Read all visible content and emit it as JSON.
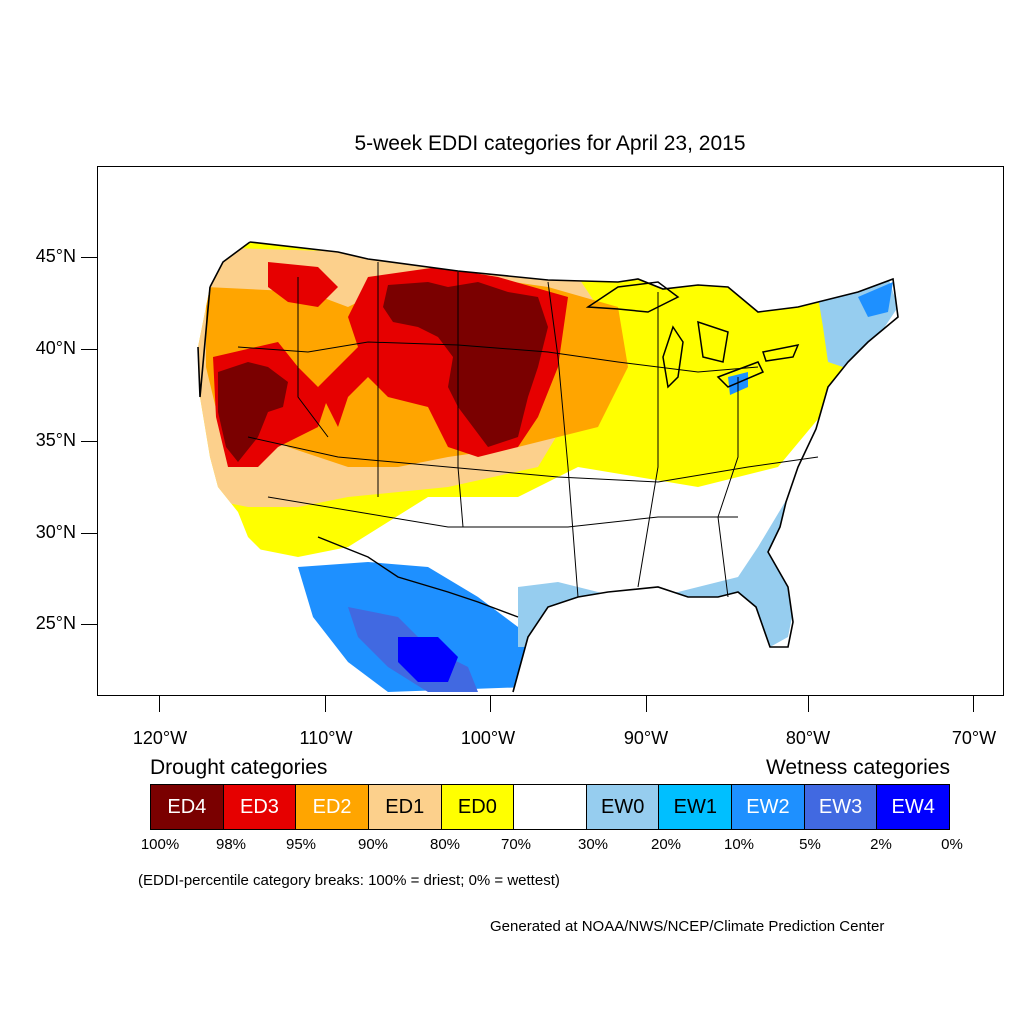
{
  "title": "5-week EDDI categories for April 23, 2015",
  "lat_labels": [
    "45°N",
    "40°N",
    "35°N",
    "30°N",
    "25°N"
  ],
  "lon_labels": [
    "120°W",
    "110°W",
    "100°W",
    "90°W",
    "80°W",
    "70°W"
  ],
  "legend": {
    "drought_heading": "Drought categories",
    "wetness_heading": "Wetness categories",
    "categories": [
      {
        "label": "ED4",
        "color": "#7a0000",
        "text_color": "#ffffff"
      },
      {
        "label": "ED3",
        "color": "#e60000",
        "text_color": "#ffffff"
      },
      {
        "label": "ED2",
        "color": "#ffa500",
        "text_color": "#ffffff"
      },
      {
        "label": "ED1",
        "color": "#fcd08c",
        "text_color": "#000000"
      },
      {
        "label": "ED0",
        "color": "#ffff00",
        "text_color": "#000000"
      },
      {
        "label": "",
        "color": "#ffffff",
        "text_color": "#000000"
      },
      {
        "label": "EW0",
        "color": "#96cdef",
        "text_color": "#000000"
      },
      {
        "label": "EW1",
        "color": "#00bfff",
        "text_color": "#000000"
      },
      {
        "label": "EW2",
        "color": "#1e90ff",
        "text_color": "#ffffff"
      },
      {
        "label": "EW3",
        "color": "#4169e1",
        "text_color": "#ffffff"
      },
      {
        "label": "EW4",
        "color": "#0000ff",
        "text_color": "#ffffff"
      }
    ],
    "breaks": [
      "100%",
      "98%",
      "95%",
      "90%",
      "80%",
      "70%",
      "30%",
      "20%",
      "10%",
      "5%",
      "2%",
      "0%"
    ]
  },
  "note": "(EDDI-percentile category breaks: 100% = driest; 0% = wettest)",
  "credit": "Generated at NOAA/NWS/NCEP/Climate Prediction Center"
}
